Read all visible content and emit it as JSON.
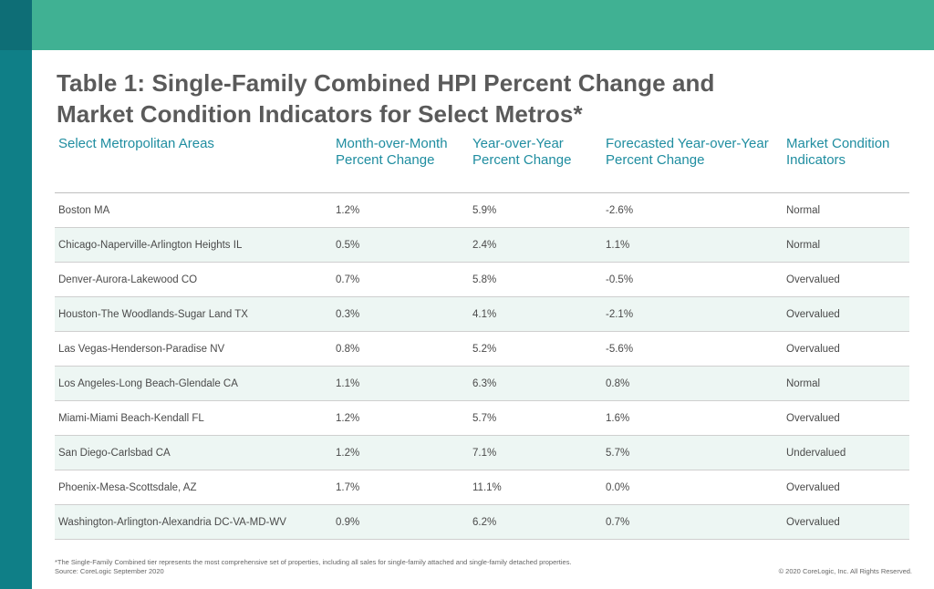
{
  "title": {
    "line1": "Table 1: Single-Family Combined HPI Percent Change and",
    "line2": "Market Condition Indicators for Select Metros*"
  },
  "chart_data": {
    "type": "table",
    "columns": [
      "Select Metropolitan Areas",
      "Month-over-Month Percent Change",
      "Year-over-Year Percent Change",
      "Forecasted Year-over-Year Percent Change",
      "Market Condition Indicators"
    ],
    "rows": [
      [
        "Boston MA",
        "1.2%",
        "5.9%",
        "-2.6%",
        "Normal"
      ],
      [
        "Chicago-Naperville-Arlington Heights IL",
        "0.5%",
        "2.4%",
        "1.1%",
        "Normal"
      ],
      [
        "Denver-Aurora-Lakewood CO",
        "0.7%",
        "5.8%",
        "-0.5%",
        "Overvalued"
      ],
      [
        "Houston-The Woodlands-Sugar Land TX",
        "0.3%",
        "4.1%",
        "-2.1%",
        "Overvalued"
      ],
      [
        "Las Vegas-Henderson-Paradise NV",
        "0.8%",
        "5.2%",
        "-5.6%",
        "Overvalued"
      ],
      [
        "Los Angeles-Long Beach-Glendale CA",
        "1.1%",
        "6.3%",
        "0.8%",
        "Normal"
      ],
      [
        "Miami-Miami Beach-Kendall FL",
        "1.2%",
        "5.7%",
        "1.6%",
        "Overvalued"
      ],
      [
        "San Diego-Carlsbad CA",
        "1.2%",
        "7.1%",
        "5.7%",
        "Undervalued"
      ],
      [
        "Phoenix-Mesa-Scottsdale, AZ",
        "1.7%",
        "11.1%",
        "0.0%",
        "Overvalued"
      ],
      [
        "Washington-Arlington-Alexandria DC-VA-MD-WV",
        "0.9%",
        "6.2%",
        "0.7%",
        "Overvalued"
      ]
    ]
  },
  "footer": {
    "note": "*The Single-Family Combined tier represents the most comprehensive set of properties, including all sales for single-family attached and single-family detached properties.",
    "source": "Source: CoreLogic September 2020",
    "copyright": "© 2020 CoreLogic, Inc. All Rights Reserved."
  },
  "colors": {
    "topbar": "#40b193",
    "sidebar": "#0f7f87",
    "header_text": "#1f8da0",
    "row_alt": "#edf6f3"
  }
}
